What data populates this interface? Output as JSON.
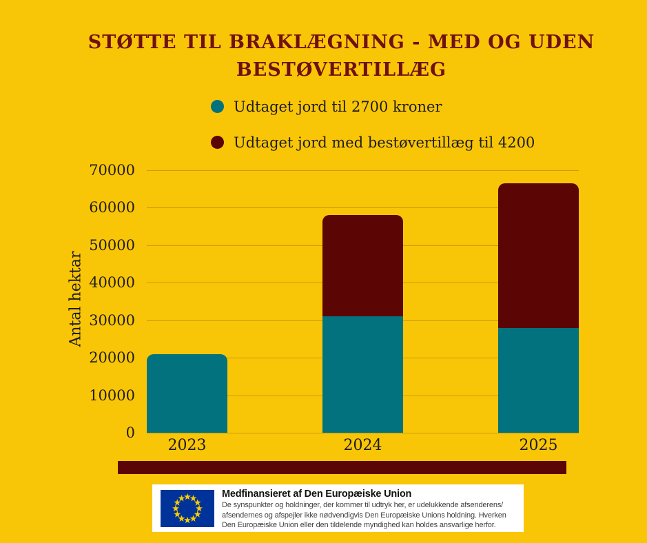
{
  "header": {
    "title_line1": "STØTTE TIL BRAKLÆGNING - MED OG UDEN",
    "title_line2": "BESTØVERTILLÆG",
    "title_color": "#701111"
  },
  "colors": {
    "background": "#F9C507",
    "teal": "#02727E",
    "dark_red": "#5B0505",
    "gridline": "rgba(0,0,0,0.2)",
    "text": "#1d1d1b"
  },
  "legend": {
    "items": [
      {
        "label": "Udtaget jord til 2700 kroner",
        "color": "#02727E",
        "icon": "circle"
      },
      {
        "label": "Udtaget jord med bestøvertillæg til 4200",
        "color": "#5B0505",
        "icon": "circle"
      }
    ]
  },
  "chart_data": {
    "type": "bar",
    "stacked": true,
    "title": "Støtte til braklægning - med og uden bestøvertillæg",
    "categories": [
      "2023",
      "2024",
      "2025"
    ],
    "series": [
      {
        "name": "Udtaget jord til 2700 kroner",
        "color": "#02727E",
        "values": [
          21000,
          31000,
          28000
        ]
      },
      {
        "name": "Udtaget jord med bestøvertillæg til 4200",
        "color": "#5B0505",
        "values": [
          0,
          27000,
          38500
        ]
      }
    ],
    "totals": [
      21000,
      58000,
      66500
    ],
    "xlabel": "",
    "ylabel": "Antal hektar",
    "ylim": [
      0,
      70000
    ],
    "ytick_step": 10000,
    "ytick_labels": [
      "0",
      "10000",
      "20000",
      "30000",
      "40000",
      "50000",
      "60000",
      "70000"
    ],
    "grid": true,
    "legend_position": "top"
  },
  "footer": {
    "divider_color": "#5B0505",
    "eu_box": {
      "title": "Medfinansieret af Den Europæiske Union",
      "body_lines": [
        "De synspunkter og holdninger, der kommer til udtryk her, er udelukkende afsenderens/",
        "afsendernes og afspejler ikke nødvendigvis Den Europæiske Unions holdning. Hverken",
        "Den Europæiske Union eller den tildelende myndighed kan holdes ansvarlige herfor."
      ],
      "flag": {
        "background": "#003399",
        "star_color": "#FFCC00",
        "star_count": 12
      }
    }
  }
}
